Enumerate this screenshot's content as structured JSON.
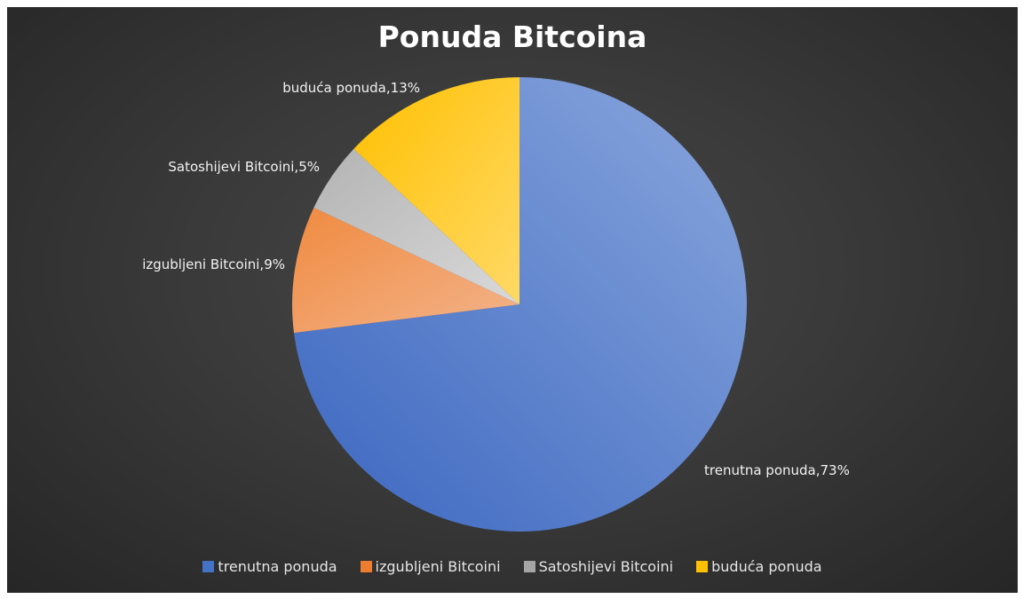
{
  "chart_data": {
    "type": "pie",
    "title": "Ponuda Bitcoina",
    "categories": [
      "trenutna ponuda",
      "izgubljeni Bitcoini",
      "Satoshijevi Bitcoini",
      "buduća ponuda"
    ],
    "values": [
      73,
      9,
      5,
      13
    ],
    "labels": [
      "trenutna ponuda,73%",
      "izgubljeni Bitcoini,9%",
      "Satoshijevi Bitcoini,5%",
      "buduća ponuda,13%"
    ],
    "colors": [
      "#4472C4",
      "#ED7D31",
      "#A5A5A5",
      "#FFC000"
    ],
    "legend_position": "bottom"
  }
}
